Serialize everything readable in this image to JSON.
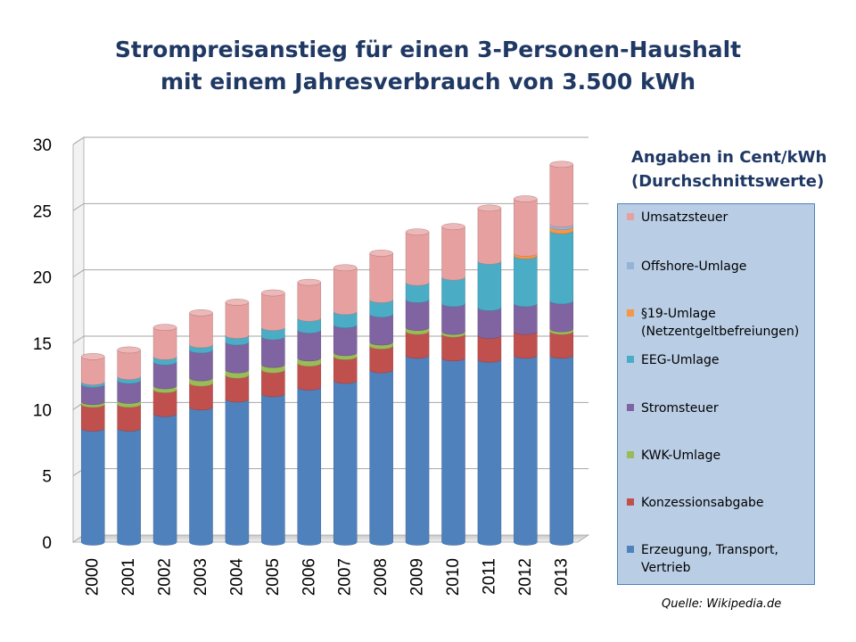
{
  "title_lines": [
    "Strompreisanstieg für einen 3-Personen-Haushalt",
    "mit einem Jahresverbrauch von 3.500 kWh"
  ],
  "legend_heading_lines": [
    "Angaben in Cent/kWh",
    "(Durchschnittswerte)"
  ],
  "source": "Quelle: Wikipedia.de",
  "chart_data": {
    "type": "bar",
    "stacked": true,
    "title": "Strompreisanstieg für einen 3-Personen-Haushalt mit einem Jahresverbrauch von 3.500 kWh",
    "ylim": [
      0,
      30
    ],
    "yticks": [
      0,
      5,
      10,
      15,
      20,
      25,
      30
    ],
    "grid": true,
    "legend": "right",
    "categories": [
      "2000",
      "2001",
      "2002",
      "2003",
      "2004",
      "2005",
      "2006",
      "2007",
      "2008",
      "2009",
      "2010",
      "2011",
      "2012",
      "2013"
    ],
    "series": [
      {
        "name": "Erzeugung, Transport, Vertrieb",
        "label_lines": [
          "Erzeugung, Transport,",
          "Vertrieb"
        ],
        "color": "#4f81bd",
        "values": [
          8.6,
          8.6,
          9.7,
          10.2,
          10.8,
          11.2,
          11.7,
          12.2,
          13.0,
          14.1,
          13.9,
          13.8,
          14.1,
          14.1
        ]
      },
      {
        "name": "Konzessionsabgabe",
        "label_lines": [
          "Konzessionsabgabe"
        ],
        "color": "#c0504d",
        "values": [
          1.8,
          1.8,
          1.8,
          1.8,
          1.8,
          1.8,
          1.8,
          1.8,
          1.8,
          1.8,
          1.8,
          1.8,
          1.8,
          1.8
        ]
      },
      {
        "name": "KWK-Umlage",
        "label_lines": [
          "KWK-Umlage"
        ],
        "color": "#9bbb59",
        "values": [
          0.2,
          0.3,
          0.3,
          0.4,
          0.4,
          0.4,
          0.4,
          0.3,
          0.3,
          0.3,
          0.2,
          0.0,
          0.0,
          0.2
        ]
      },
      {
        "name": "Stromsteuer",
        "label_lines": [
          "Stromsteuer"
        ],
        "color": "#8064a2",
        "values": [
          1.3,
          1.5,
          1.8,
          2.1,
          2.1,
          2.1,
          2.1,
          2.1,
          2.1,
          2.1,
          2.1,
          2.1,
          2.1,
          2.1
        ]
      },
      {
        "name": "EEG-Umlage",
        "label_lines": [
          "EEG-Umlage"
        ],
        "color": "#4bacc6",
        "values": [
          0.2,
          0.3,
          0.4,
          0.4,
          0.5,
          0.7,
          0.9,
          1.0,
          1.1,
          1.3,
          2.0,
          3.5,
          3.6,
          5.3
        ]
      },
      {
        "name": "§19-Umlage (Netzentgeltbefreiungen)",
        "label_lines": [
          "§19-Umlage",
          "(Netzentgeltbefreiungen)"
        ],
        "color": "#f79646",
        "values": [
          0,
          0,
          0,
          0,
          0,
          0,
          0,
          0,
          0,
          0,
          0,
          0,
          0.2,
          0.3
        ]
      },
      {
        "name": "Offshore-Umlage",
        "label_lines": [
          "Offshore-Umlage"
        ],
        "color": "#95b3d7",
        "values": [
          0,
          0,
          0,
          0,
          0,
          0,
          0,
          0,
          0,
          0,
          0,
          0,
          0,
          0.2
        ]
      },
      {
        "name": "Umsatzsteuer",
        "label_lines": [
          "Umsatzsteuer"
        ],
        "color": "#e6a0a0",
        "values": [
          1.9,
          2.0,
          2.2,
          2.4,
          2.5,
          2.6,
          2.7,
          3.3,
          3.5,
          3.8,
          3.8,
          4.0,
          4.1,
          4.5
        ]
      }
    ]
  }
}
